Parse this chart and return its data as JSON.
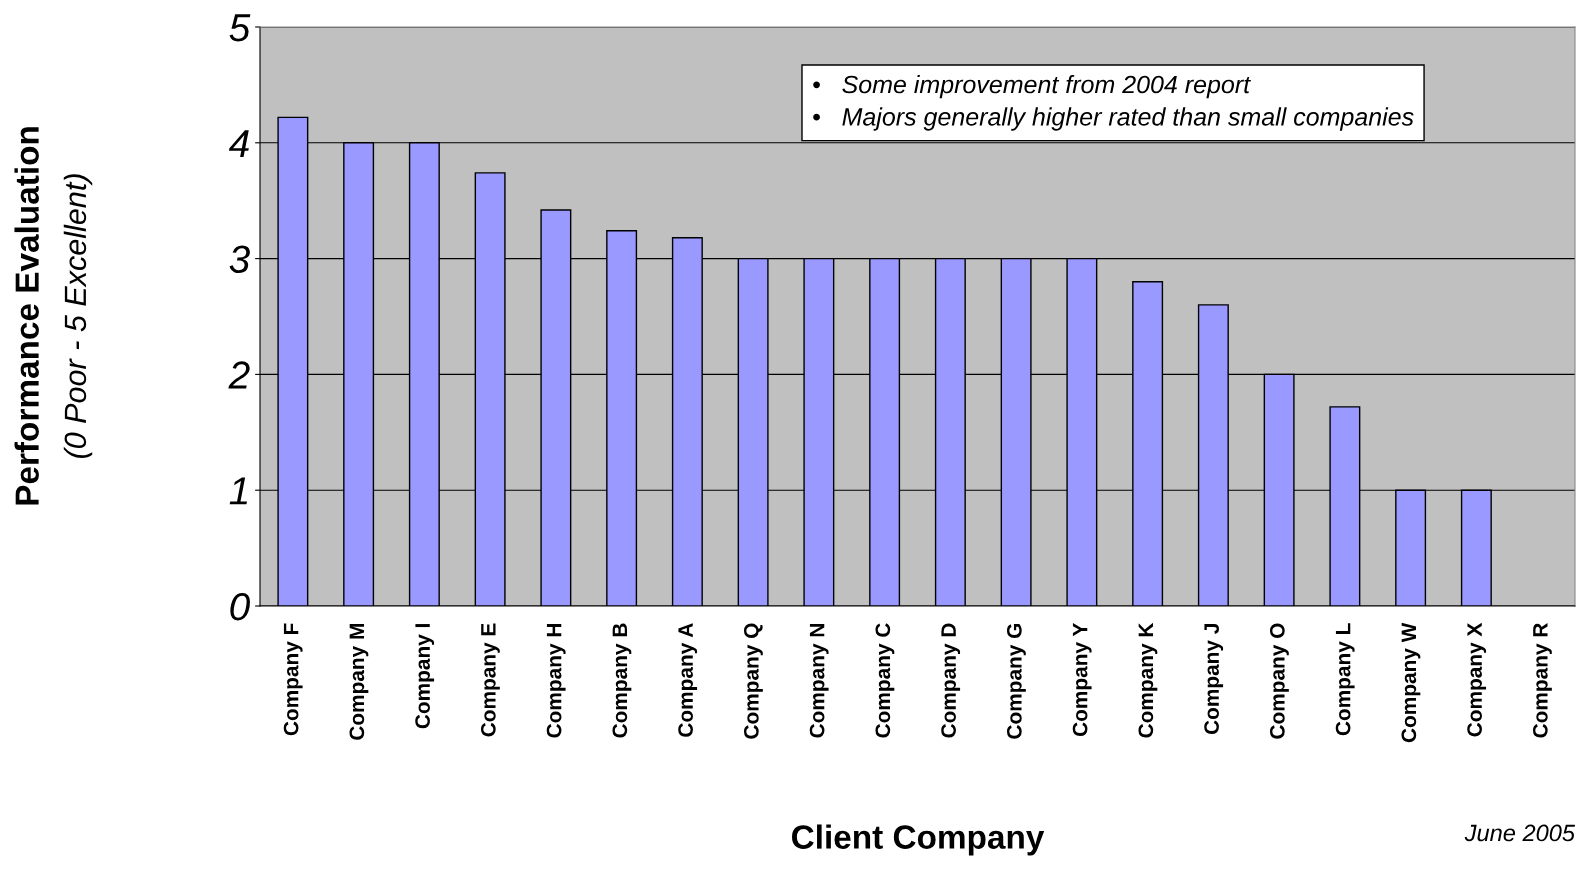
{
  "chart_data": {
    "type": "bar",
    "xlabel": "Client Company",
    "ylabel": "Performance Evaluation\n(0 Poor - 5 Excellent)",
    "categories": [
      "Company F",
      "Company M",
      "Company I",
      "Company E",
      "Company H",
      "Company B",
      "Company A",
      "Company Q",
      "Company N",
      "Company C",
      "Company D",
      "Company G",
      "Company Y",
      "Company K",
      "Company J",
      "Company O",
      "Company L",
      "Company W",
      "Company X",
      "Company R"
    ],
    "values": [
      4.22,
      4.0,
      4.0,
      3.74,
      3.42,
      3.24,
      3.18,
      3.0,
      3.0,
      3.0,
      3.0,
      3.0,
      3.0,
      2.8,
      2.6,
      2.0,
      1.72,
      1.0,
      1.0,
      null
    ],
    "color": "#9999ff",
    "ylim": [
      0,
      5
    ],
    "yticks": [
      0,
      1,
      2,
      3,
      4,
      5
    ],
    "grid": "y",
    "annotations": [
      "•   Some improvement from 2004 report",
      "•   Majors generally higher rated than small companies",
      "June 2005"
    ]
  }
}
